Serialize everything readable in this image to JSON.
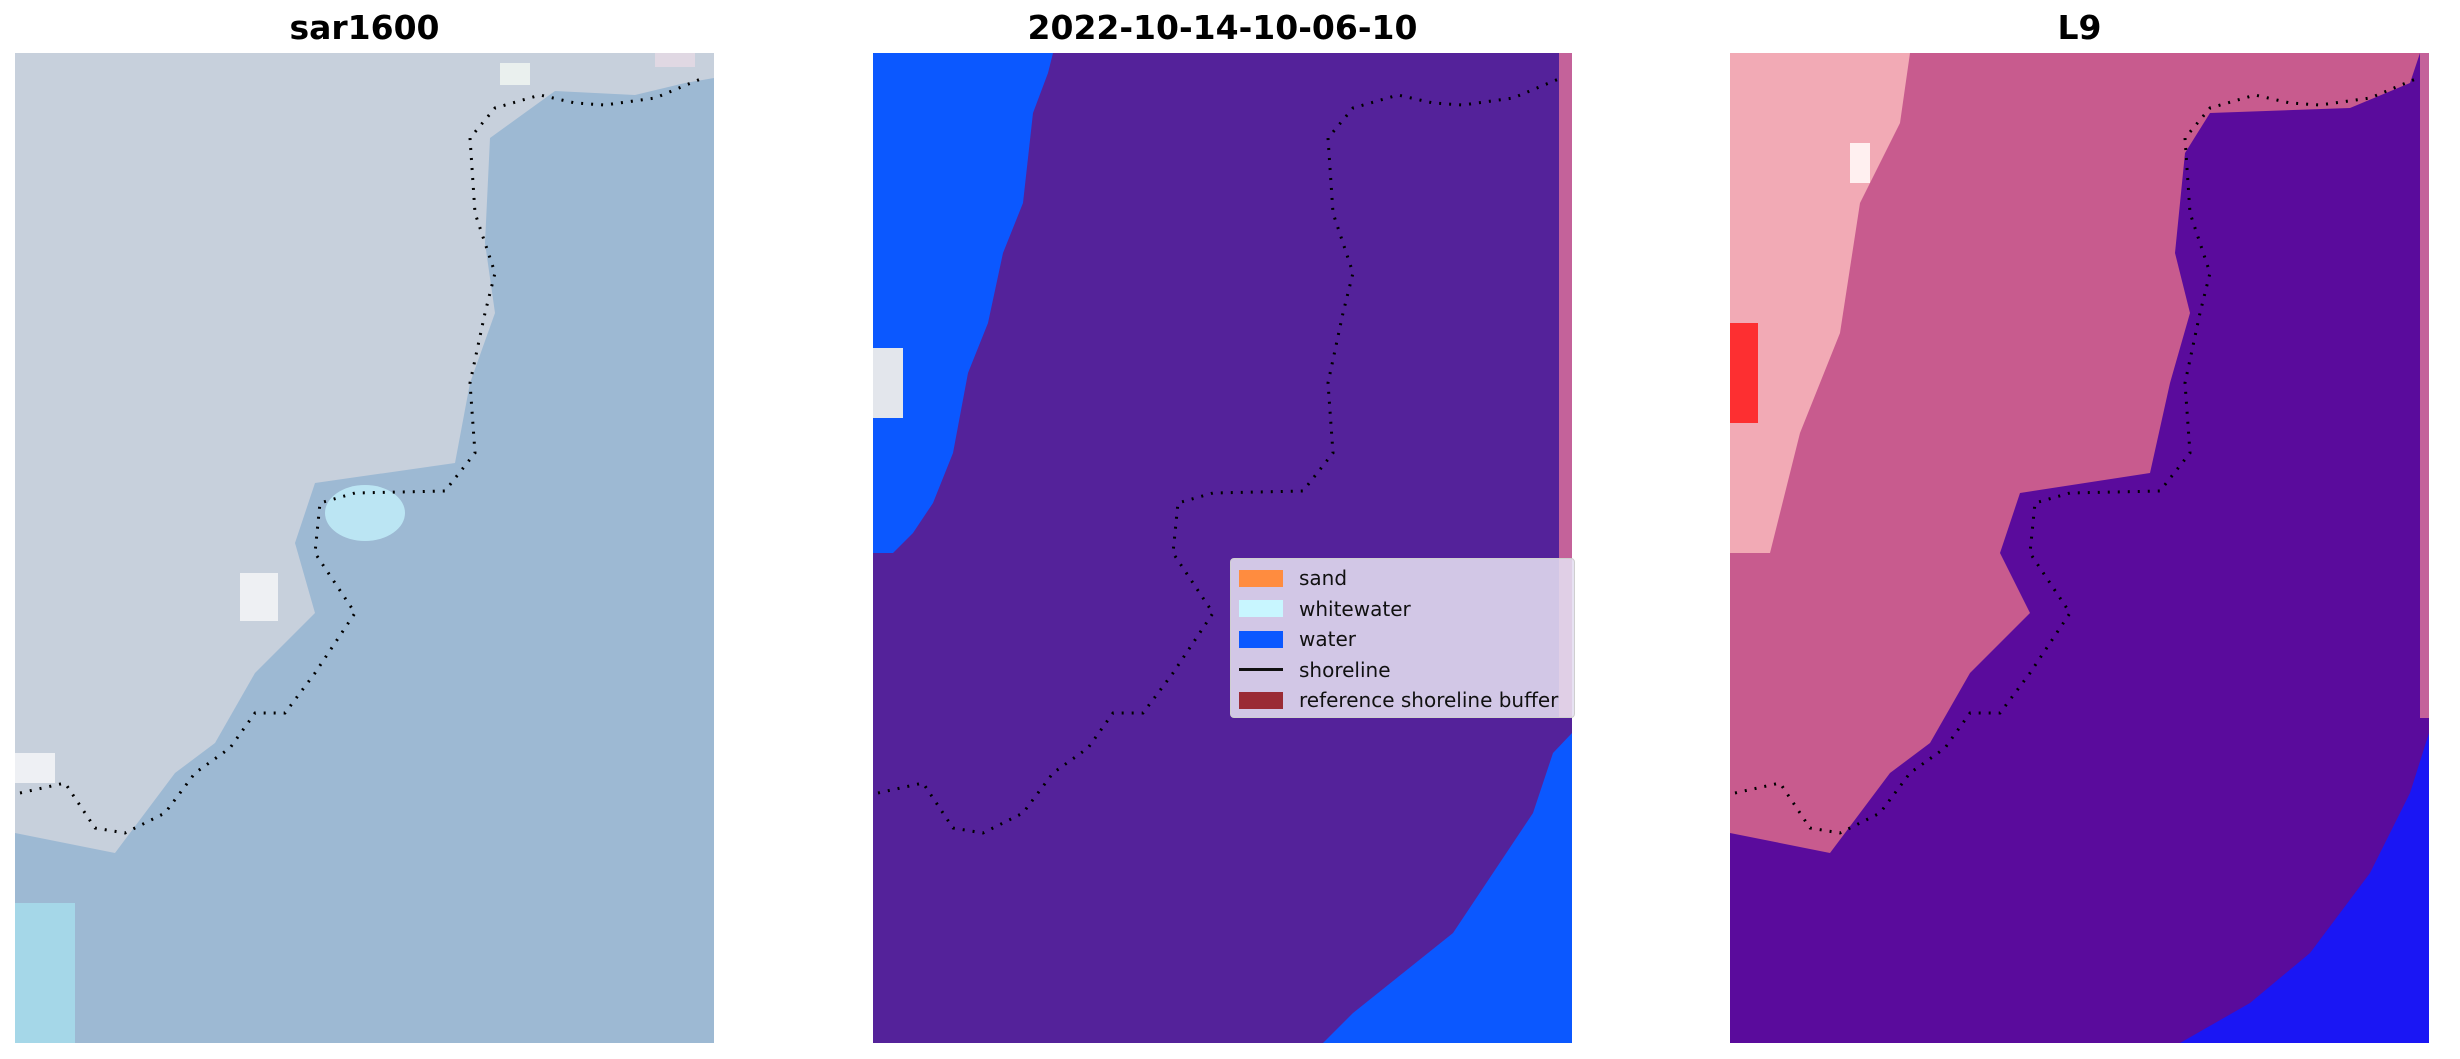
{
  "panels": [
    {
      "title": "sar1600",
      "kind": "rgb"
    },
    {
      "title": "2022-10-14-10-06-10",
      "kind": "classification"
    },
    {
      "title": "L9",
      "kind": "index"
    }
  ],
  "legend": {
    "items": [
      {
        "label": "sand",
        "type": "patch",
        "color": "#ff8c3f"
      },
      {
        "label": "whitewater",
        "type": "patch",
        "color": "#c8f6ff"
      },
      {
        "label": "water",
        "type": "patch",
        "color": "#0b58ff"
      },
      {
        "label": "shoreline",
        "type": "line",
        "color": "#111111"
      },
      {
        "label": "reference shoreline buffer",
        "type": "patch",
        "color": "#9a2b35"
      }
    ]
  },
  "colors": {
    "rgb_land": "#c7d0dc",
    "rgb_water": "#9db9d3",
    "class_land": "#54229a",
    "class_water": "#0b58ff",
    "class_buffer": "#c4629a",
    "index_land": "#c85b8e",
    "index_water": "#5a0b9c",
    "index_deep": "#1a16f4",
    "shoreline": "#000000"
  }
}
